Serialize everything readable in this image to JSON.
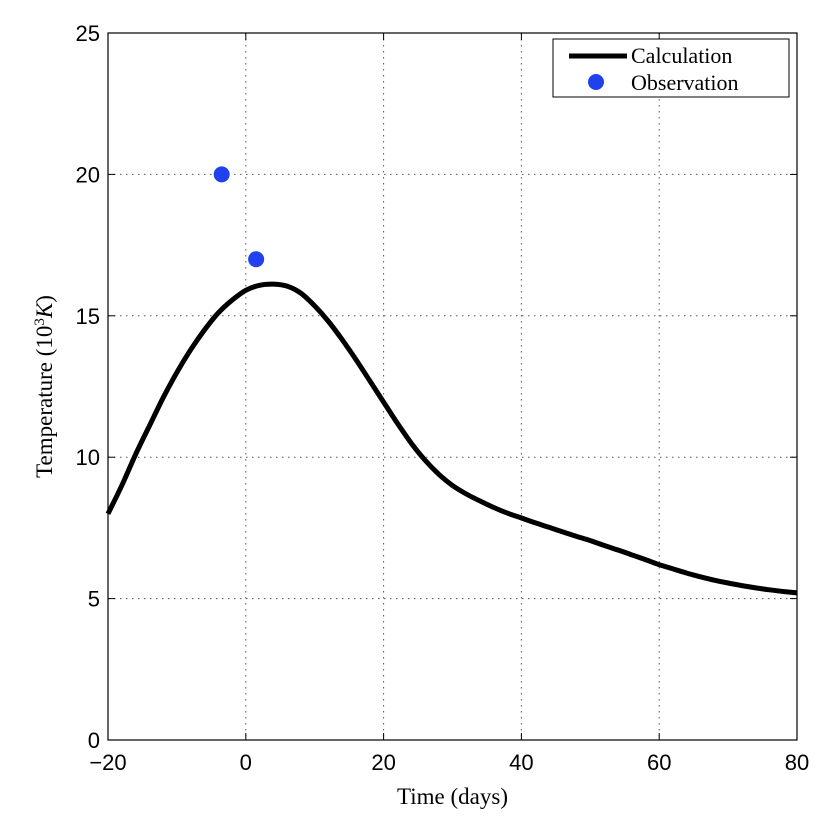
{
  "chart_data": {
    "type": "line",
    "xlabel": "Time (days)",
    "ylabel": "Temperature (10",
    "ylabel_sup": "3",
    "ylabel_unit": "K",
    "ylabel_close": ")",
    "xlim": [
      -20,
      80
    ],
    "ylim": [
      0,
      25
    ],
    "xticks": [
      -20,
      0,
      20,
      40,
      60,
      80
    ],
    "xtick_labels": [
      "−20",
      "0",
      "20",
      "40",
      "60",
      "80"
    ],
    "yticks": [
      0,
      5,
      10,
      15,
      20,
      25
    ],
    "ytick_labels": [
      "0",
      "5",
      "10",
      "15",
      "20",
      "25"
    ],
    "grid": true,
    "legend_position": "top-right",
    "series": [
      {
        "name": "Calculation",
        "kind": "line",
        "color": "#000000",
        "x": [
          -20,
          -18,
          -16,
          -14,
          -12,
          -10,
          -8,
          -6,
          -4,
          -2,
          0,
          2,
          4,
          6,
          8,
          10,
          12,
          14,
          16,
          18,
          20,
          22,
          24,
          26,
          28,
          30,
          32,
          34,
          36,
          38,
          40,
          42,
          44,
          46,
          48,
          50,
          52,
          54,
          56,
          58,
          60,
          62,
          64,
          66,
          68,
          70,
          72,
          74,
          76,
          78,
          80
        ],
        "y": [
          8.0,
          9.0,
          10.1,
          11.1,
          12.1,
          13.0,
          13.8,
          14.5,
          15.1,
          15.55,
          15.9,
          16.08,
          16.12,
          16.05,
          15.8,
          15.35,
          14.8,
          14.15,
          13.45,
          12.7,
          11.95,
          11.2,
          10.5,
          9.9,
          9.4,
          9.0,
          8.7,
          8.45,
          8.22,
          8.02,
          7.85,
          7.68,
          7.52,
          7.36,
          7.2,
          7.05,
          6.88,
          6.72,
          6.55,
          6.38,
          6.2,
          6.05,
          5.9,
          5.77,
          5.65,
          5.55,
          5.46,
          5.38,
          5.31,
          5.25,
          5.2
        ]
      },
      {
        "name": "Observation",
        "kind": "scatter",
        "color": "#2140ee",
        "x": [
          -3.5,
          1.5
        ],
        "y": [
          20.0,
          17.0
        ]
      }
    ]
  }
}
